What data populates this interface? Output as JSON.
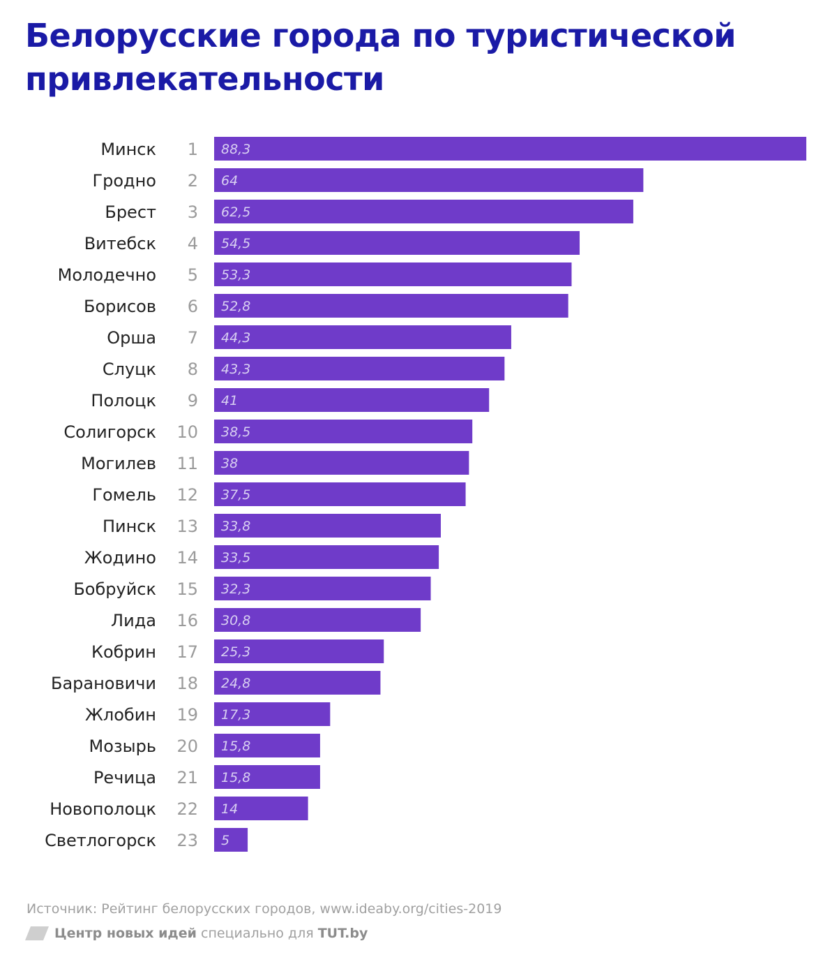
{
  "chart_data": {
    "type": "bar",
    "orientation": "horizontal",
    "title": "Белорусские города по туристической привлекательности",
    "categories": [
      "Минск",
      "Гродно",
      "Брест",
      "Витебск",
      "Молодечно",
      "Борисов",
      "Орша",
      "Слуцк",
      "Полоцк",
      "Солигорск",
      "Могилев",
      "Гомель",
      "Пинск",
      "Жодино",
      "Бобруйск",
      "Лида",
      "Кобрин",
      "Барановичи",
      "Жлобин",
      "Мозырь",
      "Речица",
      "Новополоцк",
      "Светлогорск"
    ],
    "ranks": [
      "1",
      "2",
      "3",
      "4",
      "5",
      "6",
      "7",
      "8",
      "9",
      "10",
      "11",
      "12",
      "13",
      "14",
      "15",
      "16",
      "17",
      "18",
      "19",
      "20",
      "21",
      "22",
      "23"
    ],
    "values": [
      88.3,
      64,
      62.5,
      54.5,
      53.3,
      52.8,
      44.3,
      43.3,
      41,
      38.5,
      38,
      37.5,
      33.8,
      33.5,
      32.3,
      30.8,
      25.3,
      24.8,
      17.3,
      15.8,
      15.8,
      14,
      5
    ],
    "value_labels": [
      "88,3",
      "64",
      "62,5",
      "54,5",
      "53,3",
      "52,8",
      "44,3",
      "43,3",
      "41",
      "38,5",
      "38",
      "37,5",
      "33,8",
      "33,5",
      "32,3",
      "30,8",
      "25,3",
      "24,8",
      "17,3",
      "15,8",
      "15,8",
      "14",
      "5"
    ],
    "xlim": [
      0,
      88.3
    ],
    "grid": false,
    "bar_color": "#6f3bc9"
  },
  "source": "Источник: Рейтинг белорусских городов, www.ideaby.org/cities-2019",
  "footer": {
    "org": "Центр новых идей",
    "middle": " специально для ",
    "brand": "TUT.by"
  },
  "colors": {
    "title": "#1a1aa6",
    "bar": "#6f3bc9",
    "value_label": "#d9d0f2"
  }
}
